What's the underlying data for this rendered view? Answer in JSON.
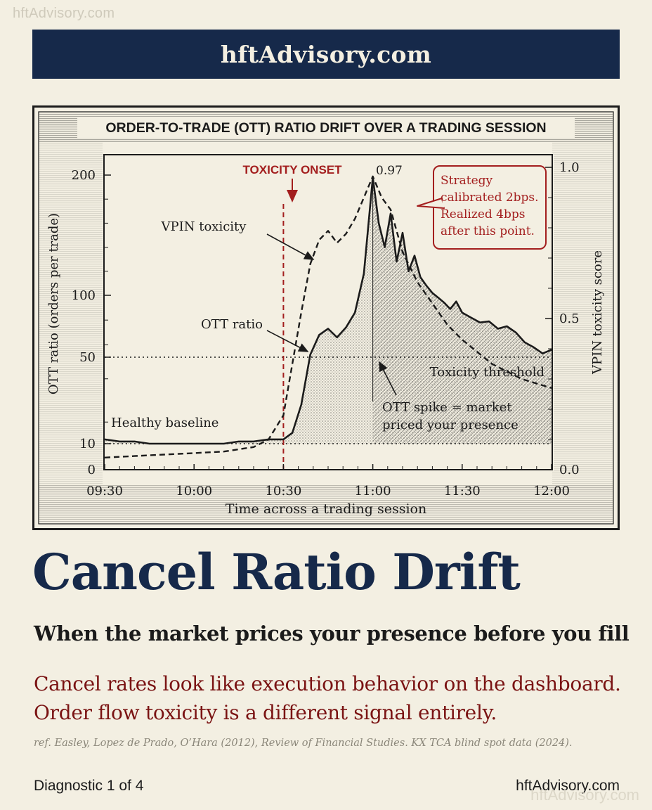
{
  "watermark": "hftAdvisory.com",
  "banner": {
    "title": "hftAdvisory.com"
  },
  "chart_data": {
    "type": "line",
    "title": "ORDER-TO-TRADE (OTT) RATIO DRIFT OVER A TRADING SESSION",
    "xlabel": "Time across a trading session",
    "ylabel": "OTT ratio (orders per trade)",
    "y2label": "VPIN toxicity score",
    "x_ticks": [
      "09:30",
      "10:00",
      "10:30",
      "11:00",
      "11:30",
      "12:00"
    ],
    "y_ticks": [
      "0",
      "10",
      "50",
      "100",
      "200"
    ],
    "y2_ticks": [
      "0.0",
      "0.5",
      "1.0"
    ],
    "y2lim": [
      0,
      1.0
    ],
    "series": [
      {
        "name": "OTT ratio",
        "style": "solid",
        "axis": "left",
        "x": [
          "09:30",
          "09:35",
          "09:40",
          "09:45",
          "09:50",
          "09:55",
          "10:00",
          "10:05",
          "10:10",
          "10:15",
          "10:20",
          "10:25",
          "10:30",
          "10:33",
          "10:36",
          "10:39",
          "10:42",
          "10:45",
          "10:48",
          "10:51",
          "10:54",
          "10:57",
          "11:00",
          "11:02",
          "11:04",
          "11:06",
          "11:08",
          "11:10",
          "11:12",
          "11:14",
          "11:16",
          "11:18",
          "11:20",
          "11:22",
          "11:24",
          "11:26",
          "11:28",
          "11:30",
          "11:33",
          "11:36",
          "11:39",
          "11:42",
          "11:45",
          "11:48",
          "11:51",
          "11:54",
          "11:57",
          "12:00"
        ],
        "values": [
          12,
          11,
          11,
          10,
          10,
          10,
          10,
          10,
          10,
          11,
          11,
          12,
          12,
          15,
          28,
          52,
          68,
          73,
          66,
          74,
          86,
          118,
          198,
          160,
          140,
          168,
          128,
          152,
          120,
          133,
          115,
          108,
          102,
          98,
          94,
          89,
          95,
          86,
          82,
          78,
          79,
          73,
          75,
          70,
          62,
          58,
          53,
          56
        ]
      },
      {
        "name": "VPIN toxicity",
        "style": "dashed",
        "axis": "right",
        "x": [
          "09:30",
          "09:40",
          "09:50",
          "10:00",
          "10:10",
          "10:20",
          "10:25",
          "10:30",
          "10:33",
          "10:36",
          "10:39",
          "10:42",
          "10:45",
          "10:48",
          "10:51",
          "10:54",
          "10:57",
          "11:00",
          "11:03",
          "11:06",
          "11:10",
          "11:15",
          "11:20",
          "11:25",
          "11:30",
          "11:40",
          "11:50",
          "12:00"
        ],
        "values": [
          0.04,
          0.045,
          0.05,
          0.055,
          0.06,
          0.075,
          0.1,
          0.18,
          0.35,
          0.52,
          0.68,
          0.76,
          0.79,
          0.75,
          0.78,
          0.83,
          0.9,
          0.97,
          0.9,
          0.86,
          0.72,
          0.62,
          0.55,
          0.48,
          0.43,
          0.35,
          0.3,
          0.27
        ]
      }
    ],
    "reference_lines": [
      {
        "label": "Toxicity threshold",
        "y": 50
      },
      {
        "label": "",
        "y": 10
      }
    ],
    "events": [
      {
        "label": "TOXICITY ONSET",
        "x": "10:30"
      }
    ],
    "annotations": {
      "vpin_label": "VPIN toxicity",
      "ott_label": "OTT ratio",
      "baseline_label": "Healthy baseline",
      "peak_label": "0.97",
      "threshold_label": "Toxicity threshold",
      "spike_line1": "OTT spike = market",
      "spike_line2": "priced your presence",
      "callout_line1": "Strategy",
      "callout_line2": "calibrated 2bps.",
      "callout_line3": "Realized 4bps",
      "callout_line4": "after this point."
    },
    "colors": {
      "ink": "#1b1b1b",
      "accent_red": "#a31e1e",
      "background": "#f3efe2",
      "navy": "#16294a"
    }
  },
  "headline": "Cancel Ratio Drift",
  "subhead": "When the market prices your presence before you fill",
  "note": {
    "line1": "Cancel rates look like execution behavior on the dashboard.",
    "line2": "Order flow toxicity is a different signal entirely."
  },
  "reference": "ref. Easley, Lopez de Prado, O’Hara (2012), Review of Financial Studies. KX TCA blind spot data (2024).",
  "footer": {
    "left": "Diagnostic 1 of 4",
    "right": "hftAdvisory.com"
  }
}
